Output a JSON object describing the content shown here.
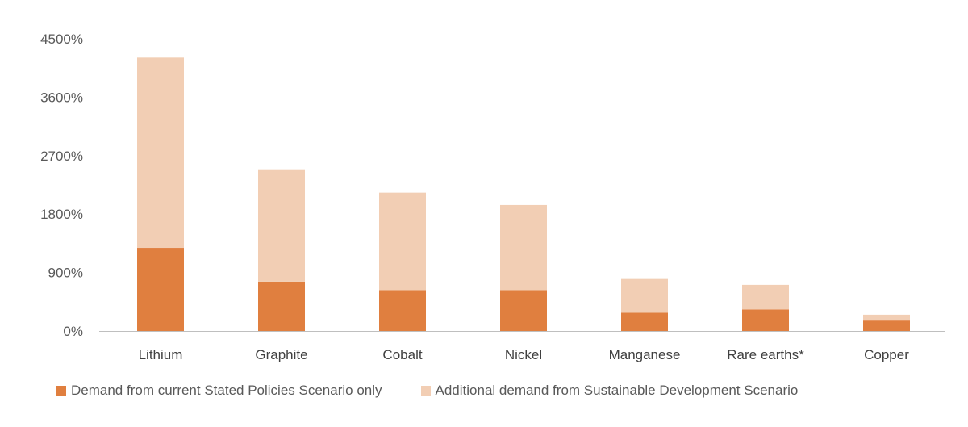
{
  "chart_data": {
    "type": "bar",
    "stacked": true,
    "categories": [
      "Lithium",
      "Graphite",
      "Cobalt",
      "Nickel",
      "Manganese",
      "Rare earths*",
      "Copper"
    ],
    "series": [
      {
        "name": "Demand from current Stated Policies Scenario only",
        "color": "#E07F3F",
        "values": [
          1280,
          760,
          630,
          630,
          280,
          330,
          160
        ]
      },
      {
        "name": "Additional demand from Sustainable Development Scenario",
        "color": "#F2CEB4",
        "values": [
          2930,
          1730,
          1500,
          1310,
          520,
          380,
          90
        ]
      }
    ],
    "y_ticks": [
      "0%",
      "900%",
      "1800%",
      "2700%",
      "3600%",
      "4500%"
    ],
    "y_tick_values": [
      0,
      900,
      1800,
      2700,
      3600,
      4500
    ],
    "ylim": [
      0,
      4500
    ],
    "grid": false,
    "legend_position": "bottom"
  }
}
